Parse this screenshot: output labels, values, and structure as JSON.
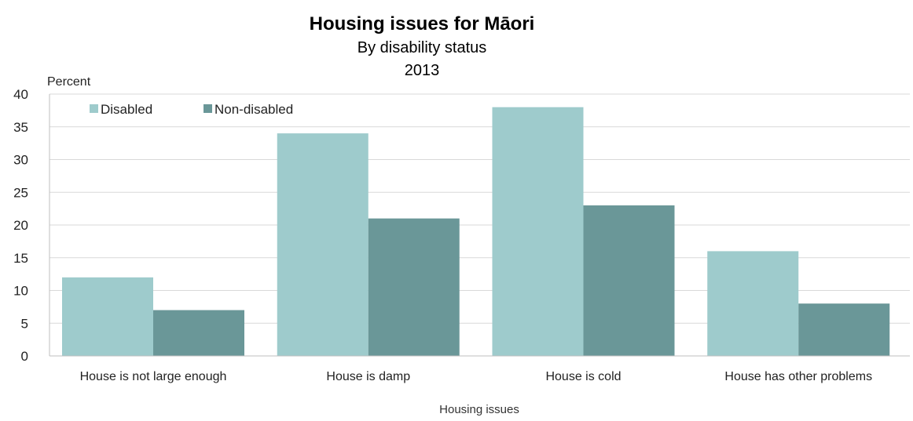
{
  "chart_data": {
    "type": "bar",
    "title": "Housing issues for Māori",
    "subtitle": "By disability status",
    "subtitle2": "2013",
    "ylabel": "Percent",
    "xlabel": "Housing issues",
    "ylim": [
      0,
      40
    ],
    "yticks": [
      0,
      5,
      10,
      15,
      20,
      25,
      30,
      35,
      40
    ],
    "grid": true,
    "legend_position": "top-left",
    "categories": [
      "House is not large enough",
      "House is damp",
      "House is cold",
      "House has other problems"
    ],
    "series": [
      {
        "name": "Disabled",
        "color": "#9ecbcc",
        "values": [
          12,
          34,
          38,
          16
        ]
      },
      {
        "name": "Non-disabled",
        "color": "#6a9798",
        "values": [
          7,
          21,
          23,
          8
        ]
      }
    ]
  }
}
